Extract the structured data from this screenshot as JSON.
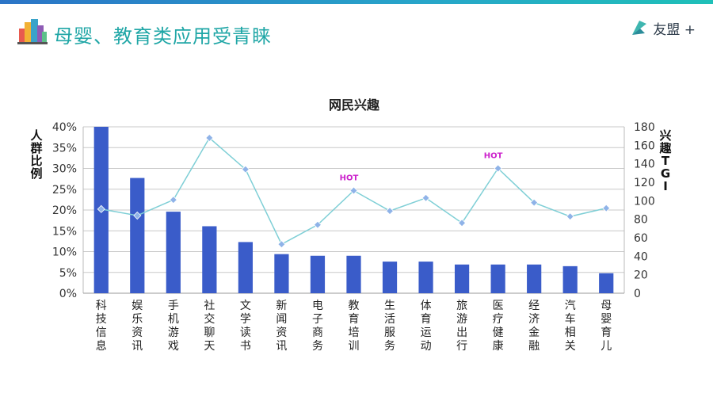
{
  "header": {
    "title": "母婴、教育类应用受青睐",
    "brand_name": "友盟 +",
    "icon": "city-buildings-icon",
    "brand_icon": "umeng-logo-icon",
    "accent_color": "#1fa6a6"
  },
  "chart_data": {
    "type": "bar",
    "title": "网民兴趣",
    "categories": [
      "科技信息",
      "娱乐资讯",
      "手机游戏",
      "社交聊天",
      "文学读书",
      "新闻资讯",
      "电子商务",
      "教育培训",
      "生活服务",
      "体育运动",
      "旅游出行",
      "医疗健康",
      "经济金融",
      "汽车相关",
      "母婴育儿"
    ],
    "series": [
      {
        "axis": "left",
        "type": "bar",
        "color": "#3a5cc9",
        "values": [
          40,
          27.7,
          19.6,
          16.1,
          12.3,
          9.4,
          9.0,
          9.0,
          7.6,
          7.6,
          6.9,
          6.9,
          6.9,
          6.5,
          4.8
        ]
      },
      {
        "axis": "right",
        "type": "line",
        "color": "#7fcfd6",
        "marker_color": "#8fb3e8",
        "values": [
          91,
          84,
          101,
          168,
          134,
          53,
          74,
          111,
          89,
          103,
          76,
          135,
          98,
          83,
          92
        ]
      }
    ],
    "ylabel_left": "人群比例",
    "ylabel_right": "兴趣TGI",
    "ylim_left": [
      0,
      40
    ],
    "ylim_right": [
      0,
      180
    ],
    "yticks_left": [
      "0%",
      "5%",
      "10%",
      "15%",
      "20%",
      "25%",
      "30%",
      "35%",
      "40%"
    ],
    "yticks_right": [
      "0",
      "20",
      "40",
      "60",
      "80",
      "100",
      "120",
      "140",
      "160",
      "180"
    ],
    "annotations": [
      {
        "category": "教育培训",
        "text": "HOT",
        "color": "#cc22cc"
      },
      {
        "category": "医疗健康",
        "text": "HOT",
        "color": "#cc22cc"
      }
    ],
    "grid": true
  }
}
